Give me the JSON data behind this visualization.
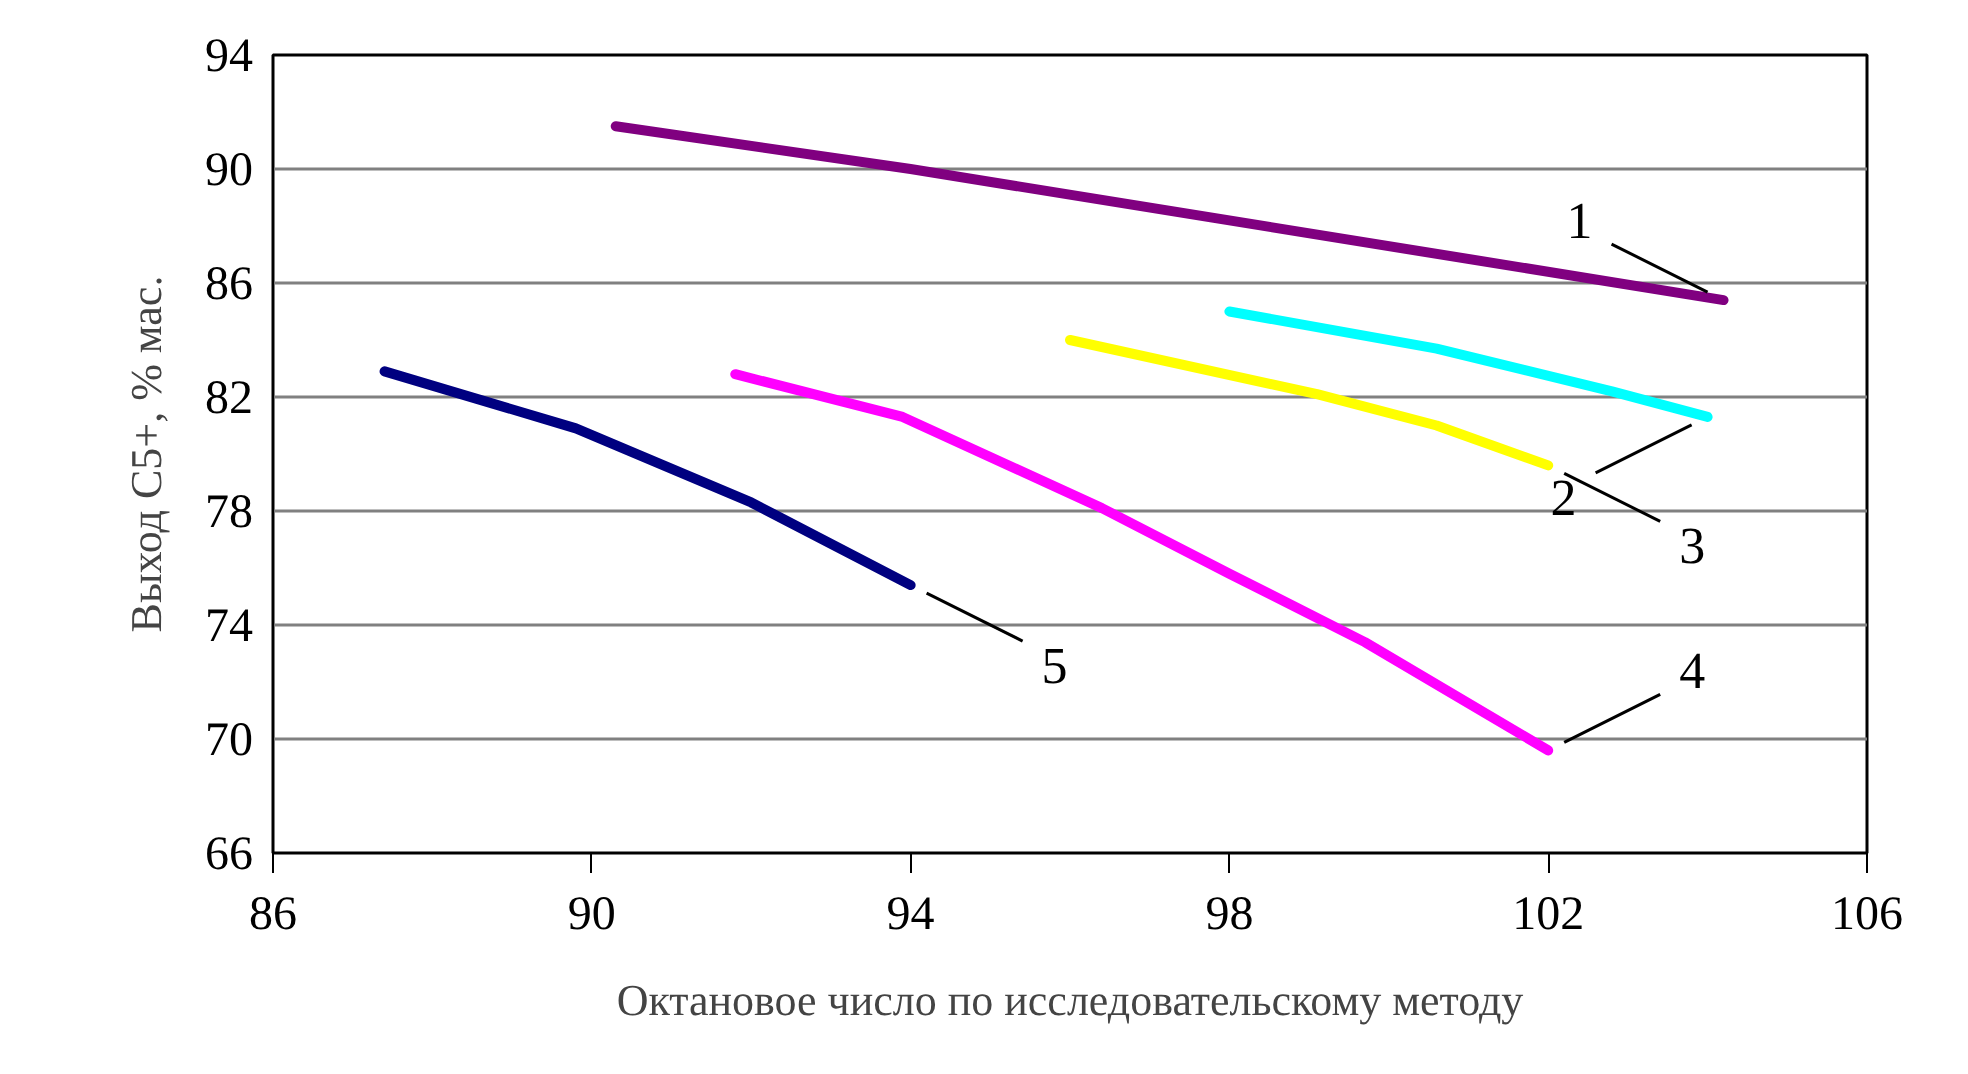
{
  "chart_data": {
    "type": "line",
    "xlabel": "Октановое число по исследовательскому методу",
    "ylabel": "Выход С5+, % мас.",
    "xlim": [
      86,
      106
    ],
    "xticks": [
      86,
      90,
      94,
      98,
      102,
      106
    ],
    "ylim": [
      66,
      94
    ],
    "yticks": [
      66,
      70,
      74,
      78,
      82,
      86,
      90,
      94
    ],
    "grid": "y",
    "marker": "none",
    "line_style": "solid",
    "series": [
      {
        "name": "1",
        "color": "#800080",
        "x": [
          90.3,
          94.0,
          104.2
        ],
        "values": [
          91.5,
          90.0,
          85.4
        ]
      },
      {
        "name": "2",
        "color": "#00ffff",
        "x": [
          98.0,
          100.6,
          102.8,
          104.0
        ],
        "values": [
          85.0,
          83.7,
          82.2,
          81.3
        ]
      },
      {
        "name": "3",
        "color": "#ffff00",
        "x": [
          96.0,
          99.1,
          100.6,
          102.0
        ],
        "values": [
          84.0,
          82.1,
          81.0,
          79.6
        ]
      },
      {
        "name": "4",
        "color": "#ff00ff",
        "x": [
          91.8,
          93.9,
          96.4,
          98.0,
          99.7,
          102.0
        ],
        "values": [
          82.8,
          81.3,
          78.1,
          75.8,
          73.4,
          69.6
        ]
      },
      {
        "name": "5",
        "color": "#000080",
        "x": [
          87.4,
          89.8,
          92.0,
          94.0
        ],
        "values": [
          82.9,
          80.9,
          78.3,
          75.4
        ]
      }
    ]
  }
}
